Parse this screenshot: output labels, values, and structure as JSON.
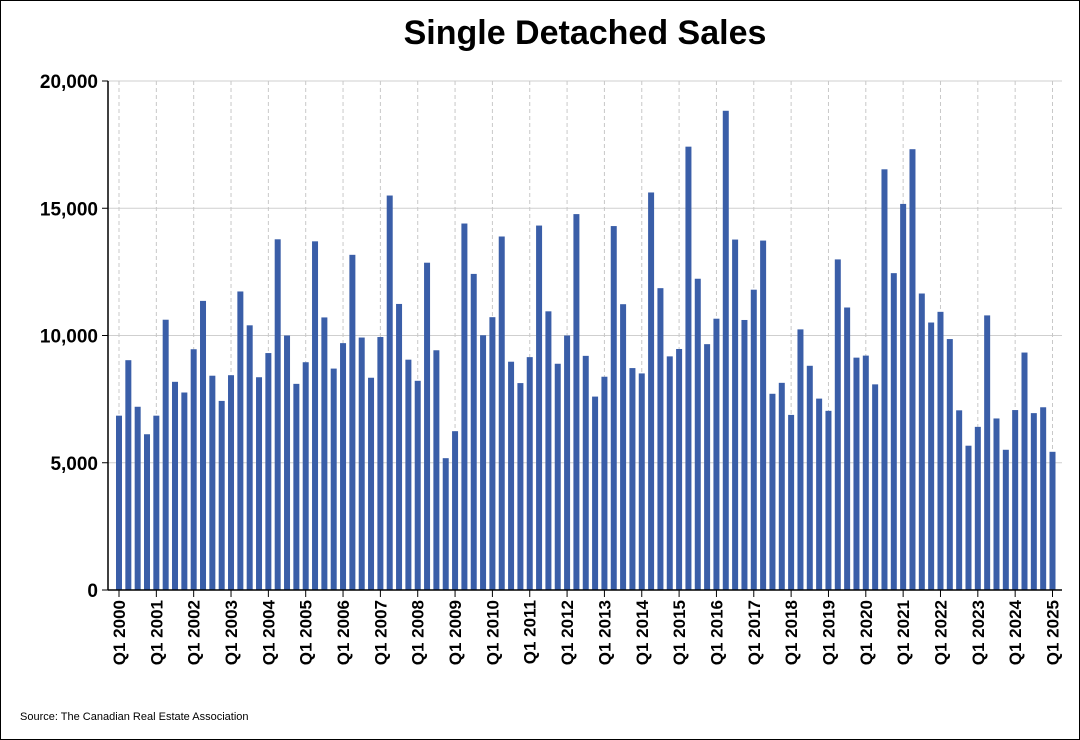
{
  "chart_data": {
    "type": "bar",
    "title": "Single Detached Sales",
    "source": "Source: The Canadian Real Estate Association",
    "xlabel": "",
    "ylabel": "",
    "ylim": [
      0,
      20000
    ],
    "yticks": [
      0,
      5000,
      10000,
      15000,
      20000
    ],
    "ytick_labels": [
      "0",
      "5,000",
      "10,000",
      "15,000",
      "20,000"
    ],
    "xtick_labels": [
      "Q1 2000",
      "Q1 2001",
      "Q1 2002",
      "Q1 2003",
      "Q1 2004",
      "Q1 2005",
      "Q1 2006",
      "Q1 2007",
      "Q1 2008",
      "Q1 2009",
      "Q1 2010",
      "Q1 2011",
      "Q1 2012",
      "Q1 2013",
      "Q1 2014",
      "Q1 2015",
      "Q1 2016",
      "Q1 2017",
      "Q1 2018",
      "Q1 2019",
      "Q1 2020",
      "Q1 2021",
      "Q1 2022",
      "Q1 2023",
      "Q1 2024",
      "Q1 2025"
    ],
    "grid": true,
    "bar_color": "#3a5ea8",
    "categories": [
      "Q1 2000",
      "Q2 2000",
      "Q3 2000",
      "Q4 2000",
      "Q1 2001",
      "Q2 2001",
      "Q3 2001",
      "Q4 2001",
      "Q1 2002",
      "Q2 2002",
      "Q3 2002",
      "Q4 2002",
      "Q1 2003",
      "Q2 2003",
      "Q3 2003",
      "Q4 2003",
      "Q1 2004",
      "Q2 2004",
      "Q3 2004",
      "Q4 2004",
      "Q1 2005",
      "Q2 2005",
      "Q3 2005",
      "Q4 2005",
      "Q1 2006",
      "Q2 2006",
      "Q3 2006",
      "Q4 2006",
      "Q1 2007",
      "Q2 2007",
      "Q3 2007",
      "Q4 2007",
      "Q1 2008",
      "Q2 2008",
      "Q3 2008",
      "Q4 2008",
      "Q1 2009",
      "Q2 2009",
      "Q3 2009",
      "Q4 2009",
      "Q1 2010",
      "Q2 2010",
      "Q3 2010",
      "Q4 2010",
      "Q1 2011",
      "Q2 2011",
      "Q3 2011",
      "Q4 2011",
      "Q1 2012",
      "Q2 2012",
      "Q3 2012",
      "Q4 2012",
      "Q1 2013",
      "Q2 2013",
      "Q3 2013",
      "Q4 2013",
      "Q1 2014",
      "Q2 2014",
      "Q3 2014",
      "Q4 2014",
      "Q1 2015",
      "Q2 2015",
      "Q3 2015",
      "Q4 2015",
      "Q1 2016",
      "Q2 2016",
      "Q3 2016",
      "Q4 2016",
      "Q1 2017",
      "Q2 2017",
      "Q3 2017",
      "Q4 2017",
      "Q1 2018",
      "Q2 2018",
      "Q3 2018",
      "Q4 2018",
      "Q1 2019",
      "Q2 2019",
      "Q3 2019",
      "Q4 2019",
      "Q1 2020",
      "Q2 2020",
      "Q3 2020",
      "Q4 2020",
      "Q1 2021",
      "Q2 2021",
      "Q3 2021",
      "Q4 2021",
      "Q1 2022",
      "Q2 2022",
      "Q3 2022",
      "Q4 2022",
      "Q1 2023",
      "Q2 2023",
      "Q3 2023",
      "Q4 2023",
      "Q1 2024",
      "Q2 2024",
      "Q3 2024",
      "Q4 2024",
      "Q1 2025"
    ],
    "values": [
      6850,
      9030,
      7200,
      6120,
      6850,
      10620,
      8180,
      7760,
      9460,
      11360,
      8420,
      7430,
      8440,
      11730,
      10400,
      8360,
      9310,
      13780,
      10000,
      8100,
      8950,
      13700,
      10710,
      8700,
      9700,
      13170,
      9920,
      8340,
      9940,
      15500,
      11240,
      9050,
      8220,
      12860,
      9420,
      5180,
      6240,
      14400,
      12420,
      10010,
      10720,
      13890,
      8970,
      8130,
      9150,
      14320,
      10950,
      8890,
      10000,
      14770,
      9200,
      7600,
      8380,
      14300,
      11230,
      8720,
      8510,
      15620,
      11860,
      9180,
      9470,
      17420,
      12230,
      9660,
      10660,
      18830,
      13770,
      10610,
      11800,
      13730,
      7710,
      8140,
      6880,
      10240,
      8810,
      7520,
      7040,
      12990,
      11100,
      9130,
      9210,
      8080,
      16530,
      12450,
      15170,
      17320,
      11650,
      10510,
      10930,
      9860,
      7060,
      5670,
      6410,
      10790,
      6740,
      5510,
      7070,
      9330,
      6950,
      7180,
      5430
    ]
  }
}
